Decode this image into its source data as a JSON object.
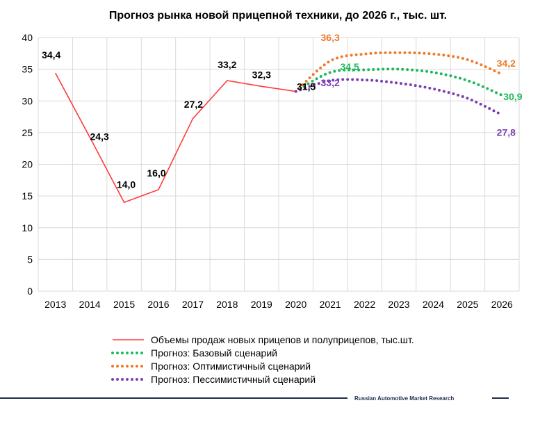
{
  "chart_data": {
    "type": "line",
    "title": "Прогноз рынка новой прицепной техники, до 2026 г., тыс. шт.",
    "categories": [
      "2013",
      "2014",
      "2015",
      "2016",
      "2017",
      "2018",
      "2019",
      "2020",
      "2021",
      "2022",
      "2023",
      "2024",
      "2025",
      "2026"
    ],
    "ylim": [
      0,
      40
    ],
    "yticks": [
      "0",
      "5",
      "10",
      "15",
      "20",
      "25",
      "30",
      "35",
      "40"
    ],
    "grid": true,
    "legend_position": "bottom",
    "series": [
      {
        "name": "Объемы продаж новых прицепов и полуприцепов, тыс.шт.",
        "style": "solid",
        "color": "#ff3b3b",
        "label_color": "#000000",
        "x": [
          "2013",
          "2014",
          "2015",
          "2016",
          "2017",
          "2018",
          "2019",
          "2020"
        ],
        "values": [
          34.4,
          24.3,
          14.0,
          16.0,
          27.2,
          33.2,
          32.3,
          31.5
        ],
        "labels": [
          "34,4",
          "24,3",
          "14,0",
          "16,0",
          "27,2",
          "33,2",
          "32,3",
          "31,5"
        ]
      },
      {
        "name": "Прогноз: Базовый сценарий",
        "style": "dotted",
        "color": "#1cb85c",
        "label_color": "#1cb85c",
        "x": [
          "2020",
          "2021",
          "2022",
          "2023",
          "2024",
          "2025",
          "2026"
        ],
        "values": [
          31.5,
          34.5,
          34.9,
          35.0,
          34.5,
          33.2,
          30.9
        ],
        "labels": {
          "2021": "34,5",
          "2026": "30,9"
        }
      },
      {
        "name": "Прогноз: Оптимистичный сценарий",
        "style": "dotted",
        "color": "#f07a28",
        "label_color": "#f07a28",
        "x": [
          "2020",
          "2021",
          "2022",
          "2023",
          "2024",
          "2025",
          "2026"
        ],
        "values": [
          31.5,
          36.3,
          37.4,
          37.6,
          37.4,
          36.5,
          34.2
        ],
        "labels": {
          "2021": "36,3",
          "2026": "34,2"
        }
      },
      {
        "name": "Прогноз: Пессимистичный сценарий",
        "style": "dotted",
        "color": "#7b3fb4",
        "label_color": "#7b3fb4",
        "x": [
          "2020",
          "2021",
          "2022",
          "2023",
          "2024",
          "2025",
          "2026"
        ],
        "values": [
          31.5,
          33.2,
          33.3,
          32.8,
          31.9,
          30.4,
          27.8
        ],
        "labels": {
          "2021": "33,2",
          "2026": "27,8"
        }
      }
    ]
  },
  "footer": {
    "text": "Russian Automotive Market Research"
  }
}
